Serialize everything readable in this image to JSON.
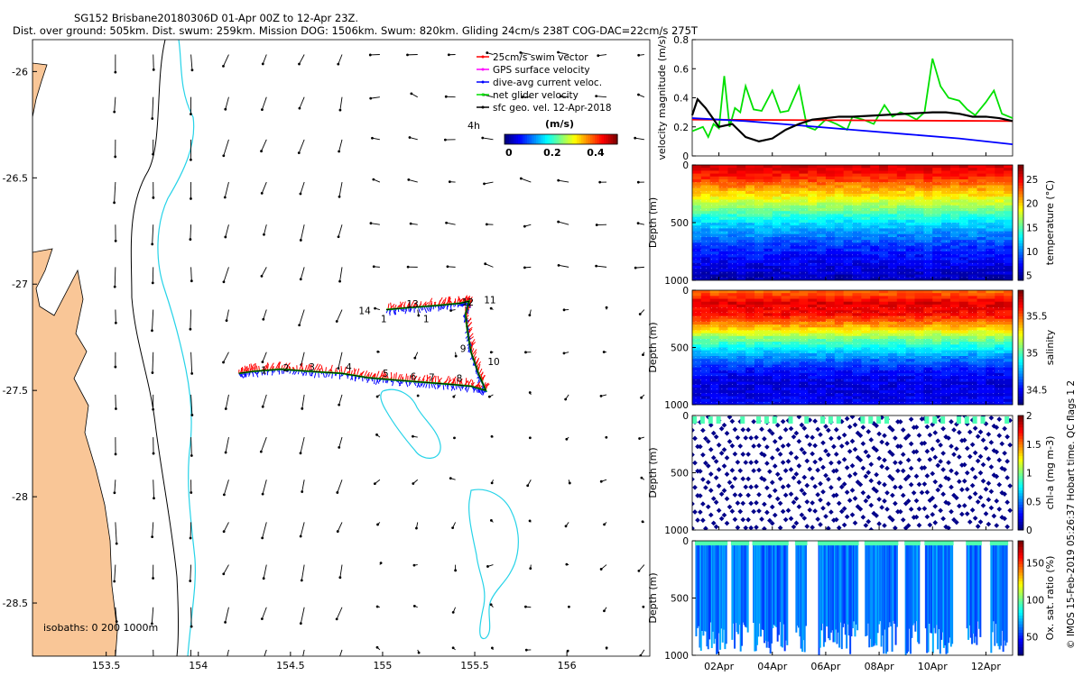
{
  "header": {
    "title_line1": "SG152 Brisbane20180306D 01-Apr 00Z to 12-Apr 23Z.",
    "title_line2": "Dist. over ground: 505km. Dist. swum: 259km. Mission DOG: 1506km. Swum: 820km. Gliding 24cm/s 238T COG-DAC=22cm/s 275T"
  },
  "footer": {
    "credit": "© IMOS 15-Feb-2019 05:26:37 Hobart time. QC flags 1  2"
  },
  "colors": {
    "land": "#f9c697",
    "isobath_200": "#26d3e8",
    "isobath_1000": "#000000",
    "swim_vector": "#ff0000",
    "gps_velocity": "#ff00ff",
    "dac": "#0000ff",
    "net_velocity": "#00e000",
    "sfc_geo": "#000000"
  },
  "map": {
    "xlim": [
      153.1,
      156.45
    ],
    "ylim": [
      -28.75,
      -25.85
    ],
    "x_ticks": [
      "153.5",
      "154",
      "154.5",
      "155",
      "155.5",
      "156"
    ],
    "x_tick_values": [
      153.5,
      154,
      154.5,
      155,
      155.5,
      156
    ],
    "y_ticks": [
      "-26",
      "-26.5",
      "-27",
      "-27.5",
      "-28",
      "-28.5"
    ],
    "y_tick_values": [
      -26,
      -26.5,
      -27,
      -27.5,
      -28,
      -28.5
    ],
    "isobath_label": "isobaths: 0   200  1000m",
    "scale_label": "4h",
    "legend": [
      {
        "name": "swim",
        "label": "25cm/s swim vector",
        "color": "#ff0000"
      },
      {
        "name": "gps",
        "label": "GPS surface velocity",
        "color": "#ff00ff"
      },
      {
        "name": "dac",
        "label": "dive-avg current veloc.",
        "color": "#0000ff"
      },
      {
        "name": "net",
        "label": "net glider velocity",
        "color": "#00e000"
      },
      {
        "name": "sfc",
        "label": "sfc geo. vel. 12-Apr-2018",
        "color": "#000000"
      }
    ],
    "colorbar": {
      "title": "(m/s)",
      "ticks": [
        "0",
        "0.2",
        "0.4"
      ],
      "tick_values": [
        0,
        0.2,
        0.4
      ],
      "range": [
        -0.02,
        0.5
      ]
    },
    "glider_track": [
      [
        154.22,
        -27.42
      ],
      [
        154.3,
        -27.41
      ],
      [
        154.45,
        -27.4
      ],
      [
        154.6,
        -27.41
      ],
      [
        154.78,
        -27.42
      ],
      [
        154.92,
        -27.44
      ],
      [
        155.05,
        -27.45
      ],
      [
        155.2,
        -27.46
      ],
      [
        155.35,
        -27.47
      ],
      [
        155.48,
        -27.48
      ],
      [
        155.56,
        -27.5
      ],
      [
        155.52,
        -27.42
      ],
      [
        155.48,
        -27.32
      ],
      [
        155.46,
        -27.22
      ],
      [
        155.45,
        -27.14
      ],
      [
        155.47,
        -27.08
      ],
      [
        155.42,
        -27.09
      ],
      [
        155.3,
        -27.1
      ],
      [
        155.15,
        -27.11
      ],
      [
        155.02,
        -27.12
      ]
    ],
    "day_labels": [
      {
        "text": "1",
        "lon": 154.34,
        "lat": -27.42
      },
      {
        "text": "2",
        "lon": 154.46,
        "lat": -27.41
      },
      {
        "text": "3",
        "lon": 154.6,
        "lat": -27.405
      },
      {
        "text": "4",
        "lon": 154.8,
        "lat": -27.405
      },
      {
        "text": "5",
        "lon": 155.0,
        "lat": -27.435
      },
      {
        "text": "6",
        "lon": 155.15,
        "lat": -27.45
      },
      {
        "text": "7",
        "lon": 155.25,
        "lat": -27.455
      },
      {
        "text": "8",
        "lon": 155.4,
        "lat": -27.46
      },
      {
        "text": "9",
        "lon": 155.42,
        "lat": -27.32
      },
      {
        "text": "10",
        "lon": 155.57,
        "lat": -27.38
      },
      {
        "text": "11",
        "lon": 155.55,
        "lat": -27.09
      },
      {
        "text": "12",
        "lon": 155.43,
        "lat": -27.1
      },
      {
        "text": "13",
        "lon": 155.13,
        "lat": -27.11
      },
      {
        "text": "14",
        "lon": 154.87,
        "lat": -27.14
      },
      {
        "text": "1",
        "lon": 154.99,
        "lat": -27.18
      },
      {
        "text": "1",
        "lon": 155.22,
        "lat": -27.18
      }
    ]
  },
  "chart_data": [
    {
      "type": "line",
      "title": "",
      "ylabel": "velocity magnitude (m/s)",
      "ylim": [
        0,
        0.8
      ],
      "y_ticks": [
        "0",
        "0.2",
        "0.4",
        "0.6",
        "0.8"
      ],
      "y_tick_values": [
        0,
        0.2,
        0.4,
        0.6,
        0.8
      ],
      "x_ticks": [
        "02Apr",
        "04Apr",
        "06Apr",
        "08Apr",
        "10Apr",
        "12Apr"
      ],
      "x_tick_days": [
        2,
        4,
        6,
        8,
        10,
        12
      ],
      "xlim_days": [
        1,
        13
      ],
      "series": [
        {
          "name": "swim speed",
          "color": "#ff0000",
          "x": [
            1,
            13
          ],
          "values": [
            0.25,
            0.24
          ]
        },
        {
          "name": "dive-avg current",
          "color": "#0000ff",
          "x": [
            1,
            3,
            5,
            7,
            9,
            11,
            13
          ],
          "values": [
            0.26,
            0.24,
            0.21,
            0.18,
            0.15,
            0.12,
            0.08
          ]
        },
        {
          "name": "surface/geo speed",
          "color": "#000000",
          "x": [
            1,
            1.2,
            1.5,
            2,
            2.5,
            3,
            3.5,
            4,
            4.5,
            5,
            5.5,
            6,
            6.5,
            7,
            8,
            9,
            10,
            10.5,
            11,
            11.5,
            12,
            12.5,
            13
          ],
          "values": [
            0.28,
            0.39,
            0.33,
            0.2,
            0.22,
            0.13,
            0.1,
            0.12,
            0.18,
            0.22,
            0.25,
            0.26,
            0.27,
            0.27,
            0.28,
            0.29,
            0.3,
            0.3,
            0.29,
            0.27,
            0.27,
            0.26,
            0.24
          ]
        },
        {
          "name": "net glider speed",
          "color": "#00e000",
          "x": [
            1,
            1.4,
            1.6,
            1.8,
            2,
            2.2,
            2.4,
            2.6,
            2.8,
            3,
            3.3,
            3.6,
            4,
            4.3,
            4.6,
            5,
            5.3,
            5.6,
            6,
            6.4,
            6.8,
            7,
            7.4,
            7.8,
            8.2,
            8.5,
            8.8,
            9.1,
            9.4,
            9.7,
            10,
            10.3,
            10.6,
            11,
            11.3,
            11.6,
            12,
            12.3,
            12.6,
            13
          ],
          "values": [
            0.17,
            0.2,
            0.13,
            0.22,
            0.19,
            0.55,
            0.2,
            0.33,
            0.3,
            0.48,
            0.32,
            0.31,
            0.45,
            0.3,
            0.31,
            0.48,
            0.2,
            0.18,
            0.25,
            0.22,
            0.18,
            0.27,
            0.25,
            0.22,
            0.35,
            0.27,
            0.3,
            0.28,
            0.25,
            0.3,
            0.67,
            0.48,
            0.4,
            0.38,
            0.32,
            0.28,
            0.37,
            0.45,
            0.29,
            0.26
          ]
        }
      ]
    },
    {
      "type": "heatmap",
      "name": "temperature",
      "ylabel": "Depth (m)",
      "ylim": [
        1000,
        0
      ],
      "y_ticks": [
        "0",
        "500",
        "1000"
      ],
      "y_tick_values": [
        0,
        500,
        1000
      ],
      "colorbar_label": "temperature (°C)",
      "cbar_range": [
        4,
        28
      ],
      "cbar_ticks": [
        "25",
        "20",
        "15",
        "10",
        "5"
      ],
      "cbar_tick_values": [
        25,
        20,
        15,
        10,
        5
      ],
      "profile_depths": [
        0,
        100,
        200,
        300,
        400,
        500,
        600,
        700,
        800,
        900,
        1000
      ],
      "profile_values": [
        26,
        24,
        21,
        18,
        15,
        12,
        10,
        8,
        7,
        6,
        5
      ]
    },
    {
      "type": "heatmap",
      "name": "salinity",
      "ylabel": "Depth (m)",
      "ylim": [
        1000,
        0
      ],
      "y_ticks": [
        "0",
        "500",
        "1000"
      ],
      "y_tick_values": [
        0,
        500,
        1000
      ],
      "colorbar_label": "salinity",
      "cbar_range": [
        34.3,
        35.85
      ],
      "cbar_ticks": [
        "35.5",
        "35",
        "34.5"
      ],
      "cbar_tick_values": [
        35.5,
        35,
        34.5
      ],
      "profile_depths": [
        0,
        100,
        200,
        300,
        400,
        500,
        600,
        700,
        800,
        900,
        1000
      ],
      "profile_values": [
        35.5,
        35.7,
        35.65,
        35.4,
        35.1,
        34.85,
        34.65,
        34.5,
        34.45,
        34.45,
        34.5
      ]
    },
    {
      "type": "scatter",
      "name": "chlorophyll",
      "ylabel": "Depth (m)",
      "ylim": [
        1000,
        0
      ],
      "y_ticks": [
        "0",
        "500",
        "1000"
      ],
      "y_tick_values": [
        0,
        500,
        1000
      ],
      "colorbar_label": "chl-a (mg m-3)",
      "cbar_range": [
        0,
        2
      ],
      "cbar_ticks": [
        "2",
        "1.5",
        "1",
        "0.5",
        "0"
      ],
      "cbar_tick_values": [
        2,
        1.5,
        1,
        0.5,
        0
      ],
      "typical_value": 0.02,
      "surface_value": 0.9
    },
    {
      "type": "scatter",
      "name": "oxygen",
      "ylabel": "Depth (m)",
      "ylim": [
        1000,
        0
      ],
      "y_ticks": [
        "0",
        "500",
        "1000"
      ],
      "y_tick_values": [
        0,
        500,
        1000
      ],
      "colorbar_label": "Ox. sat. ratio (%)",
      "cbar_range": [
        25,
        180
      ],
      "cbar_ticks": [
        "150",
        "100",
        "50"
      ],
      "cbar_tick_values": [
        150,
        100,
        50
      ],
      "typical_value": 62,
      "surface_value": 95,
      "profile_day_ranges": [
        [
          1.15,
          2.3
        ],
        [
          2.5,
          3.1
        ],
        [
          3.3,
          4.6
        ],
        [
          4.9,
          5.3
        ],
        [
          5.75,
          7.2
        ],
        [
          7.5,
          8.7
        ],
        [
          9.0,
          9.5
        ],
        [
          9.75,
          10.75
        ],
        [
          11.3,
          11.8
        ],
        [
          12.2,
          12.8
        ]
      ]
    }
  ]
}
